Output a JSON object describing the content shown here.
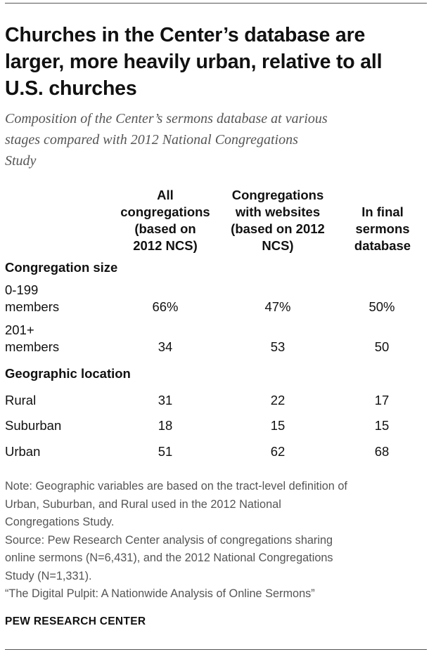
{
  "title_lines": [
    "Churches in the Center’s database are",
    "larger, more heavily urban, relative to all",
    "U.S. churches"
  ],
  "subtitle_lines": [
    "Composition of the Center’s sermons database at various",
    "stages compared with 2012 National Congregations",
    "Study"
  ],
  "columns": [
    {
      "lines": [
        "All",
        "congregations",
        "(based on",
        "2012 NCS)"
      ]
    },
    {
      "lines": [
        "Congregations",
        "with websites",
        "(based on 2012",
        "NCS)"
      ]
    },
    {
      "lines": [
        "In final",
        "sermons",
        "database"
      ]
    }
  ],
  "sections": [
    {
      "label": "Congregation size",
      "rows": [
        {
          "label_lines": [
            "0-199",
            "members"
          ],
          "values": [
            "66%",
            "47%",
            "50%"
          ]
        },
        {
          "label_lines": [
            "201+",
            "members"
          ],
          "values": [
            "34",
            "53",
            "50"
          ]
        }
      ]
    },
    {
      "label": "Geographic location",
      "rows": [
        {
          "label_lines": [
            "Rural"
          ],
          "values": [
            "31",
            "22",
            "17"
          ]
        },
        {
          "label_lines": [
            "Suburban"
          ],
          "values": [
            "18",
            "15",
            "15"
          ]
        },
        {
          "label_lines": [
            "Urban"
          ],
          "values": [
            "51",
            "62",
            "68"
          ]
        }
      ]
    }
  ],
  "notes": [
    "Note: Geographic variables are based on the tract-level definition of",
    "Urban, Suburban, and Rural used in the 2012 National",
    "Congregations Study.",
    "Source: Pew Research Center analysis of congregations sharing",
    "online sermons (N=6,431), and the 2012 National Congregations",
    "Study (N=1,331).",
    "“The Digital Pulpit: A Nationwide Analysis of Online Sermons”"
  ],
  "brand": "PEW RESEARCH CENTER"
}
